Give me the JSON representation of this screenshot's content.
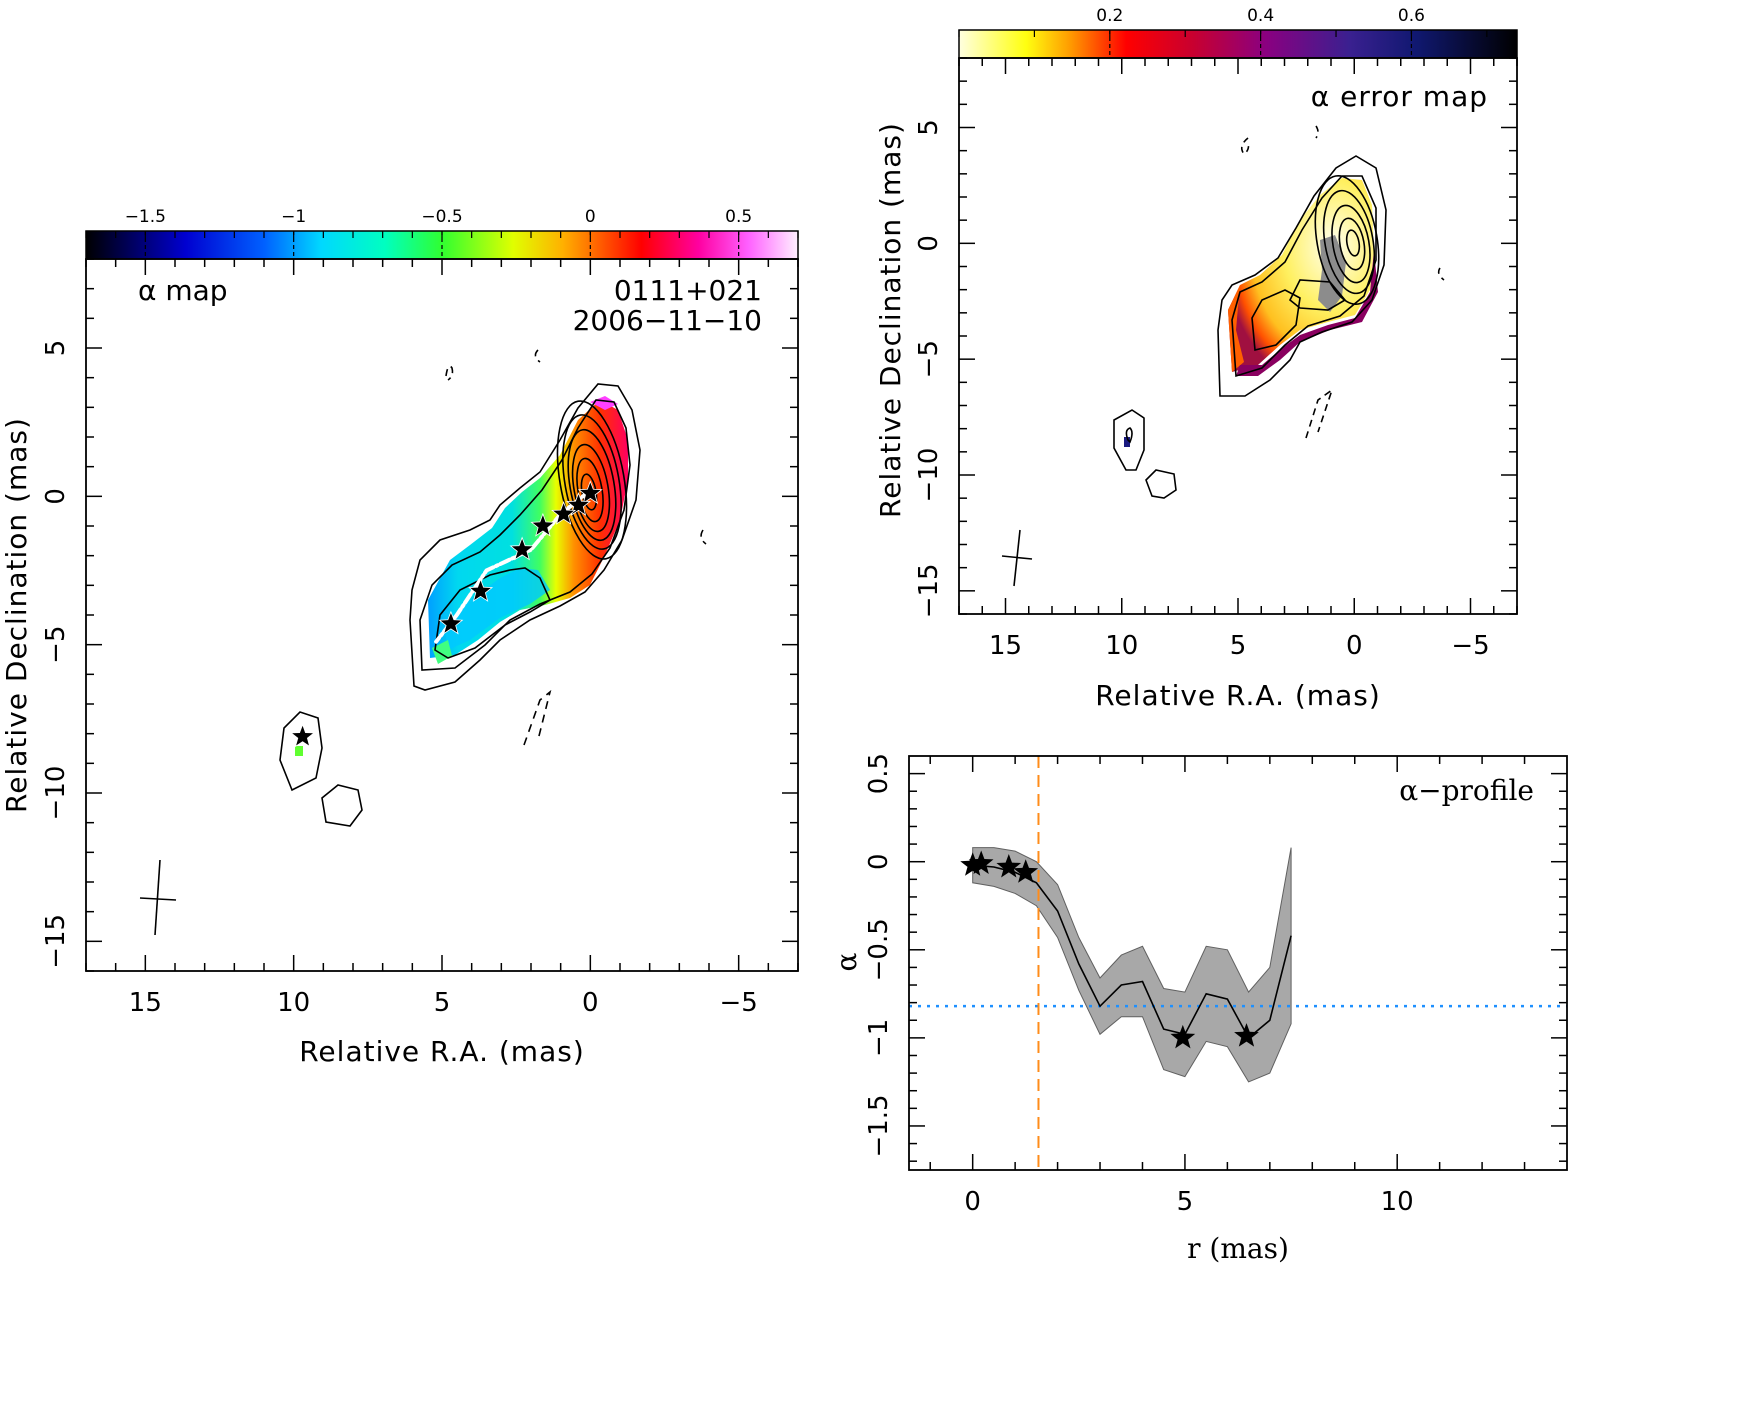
{
  "colors": {
    "spectral_index_colormap": [
      "#000000",
      "#0000ff",
      "#00ffff",
      "#00ff00",
      "#ffff00",
      "#ff7f00",
      "#ff0000",
      "#ff00ff",
      "#ffffff"
    ],
    "error_colormap": [
      "#ffffe0",
      "#ffff00",
      "#ff7700",
      "#ff0000",
      "#b80030",
      "#750075",
      "#1a1a80",
      "#000000"
    ],
    "ridge_line": "#ffffff",
    "dashed_vertical": "#ff8c1a",
    "dotted_horizontal": "#1e90ff",
    "band_fill": "#a8a8a8"
  },
  "alpha_map": {
    "label": "α map",
    "source": "0111+021",
    "date": "2006−11−10",
    "xlabel": "Relative R.A. (mas)",
    "ylabel": "Relative Declination (mas)",
    "colorbar_ticks": [
      "−1.5",
      "−1",
      "−0.5",
      "0",
      "0.5"
    ],
    "x_ticks": [
      "15",
      "10",
      "5",
      "0",
      "−5"
    ],
    "y_ticks": [
      "5",
      "0",
      "−5",
      "−10",
      "−15"
    ]
  },
  "error_map": {
    "label": "α error map",
    "xlabel": "Relative R.A. (mas)",
    "ylabel": "Relative Declination (mas)",
    "colorbar_ticks": [
      "0.2",
      "0.4",
      "0.6"
    ],
    "x_ticks": [
      "15",
      "10",
      "5",
      "0",
      "−5"
    ],
    "y_ticks": [
      "5",
      "0",
      "−5",
      "−10",
      "−15"
    ]
  },
  "profile": {
    "label": "α−profile",
    "xlabel": "r (mas)",
    "ylabel": "α",
    "x_ticks": [
      "0",
      "5",
      "10"
    ],
    "y_ticks": [
      "0.5",
      "0",
      "−0.5",
      "−1",
      "−1.5"
    ]
  },
  "chart_data": [
    {
      "type": "heatmap",
      "title": "α map",
      "annotations": [
        "0111+021",
        "2006−11−10"
      ],
      "xlabel": "Relative R.A. (mas)",
      "ylabel": "Relative Declination (mas)",
      "xlim": [
        17,
        -7
      ],
      "ylim": [
        -16,
        8
      ],
      "colorbar_range": [
        -1.7,
        0.7
      ],
      "component_stars": [
        {
          "x": 0.0,
          "y": 0.1
        },
        {
          "x": 0.4,
          "y": -0.3
        },
        {
          "x": 0.9,
          "y": -0.6
        },
        {
          "x": 1.6,
          "y": -1.0
        },
        {
          "x": 2.3,
          "y": -1.8
        },
        {
          "x": 3.7,
          "y": -3.2
        },
        {
          "x": 4.7,
          "y": -4.3
        },
        {
          "x": 9.7,
          "y": -8.1
        }
      ],
      "ridge_line": [
        [
          0.0,
          0.2
        ],
        [
          1.0,
          -0.6
        ],
        [
          2.0,
          -1.8
        ],
        [
          3.5,
          -2.5
        ],
        [
          4.5,
          -4.0
        ],
        [
          5.2,
          -4.9
        ]
      ]
    },
    {
      "type": "heatmap",
      "title": "α error map",
      "xlabel": "Relative R.A. (mas)",
      "ylabel": "Relative Declination (mas)",
      "xlim": [
        17,
        -7
      ],
      "ylim": [
        -16,
        8
      ],
      "colorbar_range": [
        0.0,
        0.74
      ]
    },
    {
      "type": "line",
      "title": "α−profile",
      "xlabel": "r (mas)",
      "ylabel": "α",
      "xlim": [
        -1.5,
        14
      ],
      "ylim": [
        -1.75,
        0.6
      ],
      "series": [
        {
          "x": [
            0.0,
            0.5,
            1.0,
            1.5,
            2.0,
            2.5,
            3.0,
            3.5,
            4.0,
            4.5,
            5.0,
            5.5,
            6.0,
            6.5,
            7.0,
            7.5
          ],
          "y": [
            -0.02,
            -0.03,
            -0.06,
            -0.12,
            -0.28,
            -0.58,
            -0.82,
            -0.7,
            -0.68,
            -0.95,
            -0.98,
            -0.75,
            -0.78,
            -1.0,
            -0.9,
            -0.42
          ],
          "y_low": [
            -0.12,
            -0.14,
            -0.18,
            -0.25,
            -0.43,
            -0.73,
            -0.98,
            -0.88,
            -0.88,
            -1.18,
            -1.22,
            -1.02,
            -1.05,
            -1.25,
            -1.2,
            -0.92
          ],
          "y_high": [
            0.08,
            0.08,
            0.06,
            0.0,
            -0.13,
            -0.43,
            -0.66,
            -0.53,
            -0.48,
            -0.72,
            -0.74,
            -0.48,
            -0.5,
            -0.74,
            -0.6,
            0.08
          ]
        }
      ],
      "star_points": [
        {
          "x": 0.0,
          "y": -0.02
        },
        {
          "x": 0.2,
          "y": -0.01
        },
        {
          "x": 0.85,
          "y": -0.03
        },
        {
          "x": 1.25,
          "y": -0.06
        },
        {
          "x": 4.95,
          "y": -1.0
        },
        {
          "x": 6.45,
          "y": -0.99
        }
      ],
      "vertical_line_x": 1.55,
      "horizontal_line_y": -0.82
    }
  ]
}
